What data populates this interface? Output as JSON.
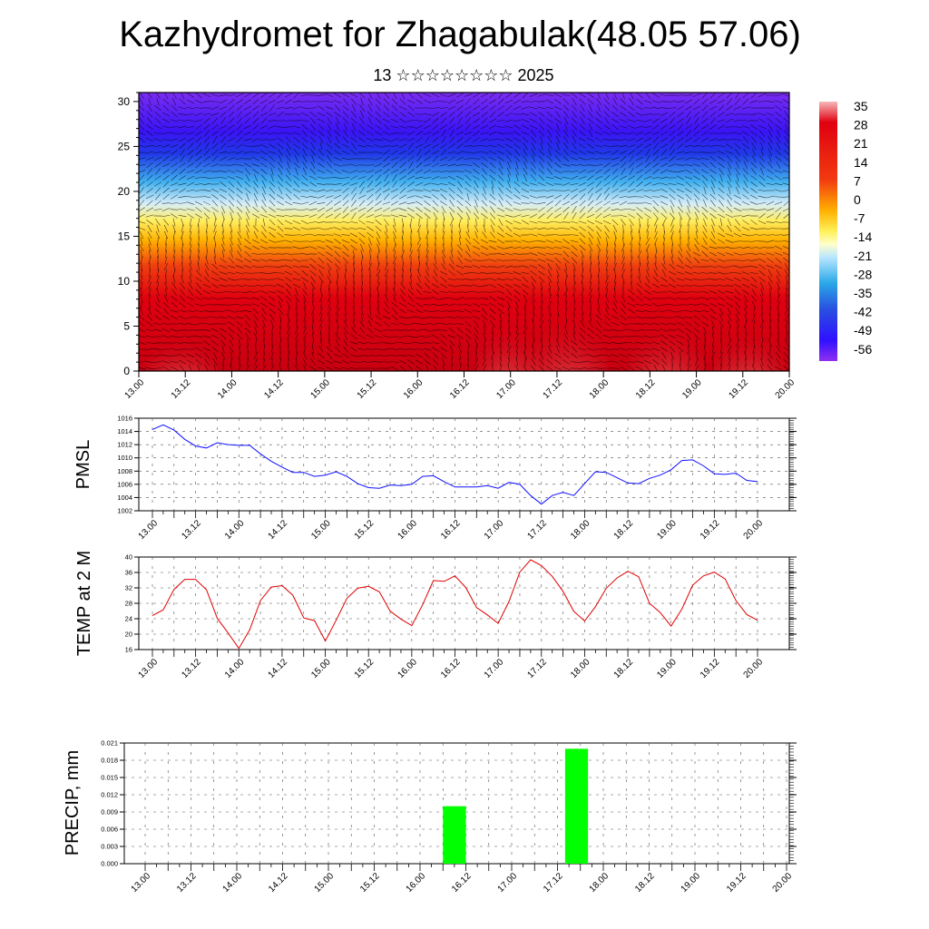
{
  "header": {
    "title": "Kazhydromet for Zhagabulak(48.05 57.06)",
    "subtitle": "13 ☆☆☆☆☆☆☆☆ 2025"
  },
  "time_labels": [
    "13.00",
    "13.12",
    "14.00",
    "14.12",
    "15.00",
    "15.12",
    "16.00",
    "16.12",
    "17.00",
    "17.12",
    "18.00",
    "18.12",
    "19.00",
    "19.12",
    "20.00"
  ],
  "chart_data": [
    {
      "type": "heatmap",
      "title": "",
      "xlabel": "",
      "ylabel": "",
      "yticks": [
        0,
        5,
        10,
        15,
        20,
        25,
        30
      ],
      "ylim": [
        0,
        31
      ],
      "colorbar": {
        "labels": [
          "35",
          "28",
          "21",
          "14",
          "7",
          "0",
          "-7",
          "-14",
          "-21",
          "-28",
          "-35",
          "-42",
          "-49",
          "-56"
        ],
        "range": [
          -60,
          38
        ]
      },
      "wind_vectors": true
    },
    {
      "type": "line",
      "ylabel": "PMSL",
      "color": "#1010ff",
      "ylim": [
        1002,
        1016
      ],
      "yticks": [
        "1016",
        "1014",
        "1012",
        "1010",
        "1008",
        "1006",
        "1004",
        "1002"
      ],
      "values": [
        1014.3,
        1015.0,
        1014.2,
        1012.8,
        1011.8,
        1011.5,
        1012.3,
        1012.0,
        1011.9,
        1011.9,
        1010.6,
        1009.5,
        1008.6,
        1007.8,
        1007.8,
        1007.2,
        1007.4,
        1007.9,
        1007.2,
        1006.1,
        1005.5,
        1005.4,
        1005.9,
        1005.8,
        1006.0,
        1007.2,
        1007.3,
        1006.4,
        1005.6,
        1005.6,
        1005.6,
        1005.8,
        1005.4,
        1006.3,
        1006.0,
        1004.3,
        1003.0,
        1004.3,
        1004.8,
        1004.3,
        1006.1,
        1007.9,
        1007.8,
        1007.0,
        1006.2,
        1006.1,
        1006.9,
        1007.4,
        1008.2,
        1009.6,
        1009.7,
        1008.8,
        1007.6,
        1007.5,
        1007.7,
        1006.6,
        1006.4
      ]
    },
    {
      "type": "line",
      "ylabel": "TEMP at 2 M",
      "color": "#e00000",
      "ylim": [
        16,
        40
      ],
      "yticks": [
        "40",
        "36",
        "32",
        "28",
        "24",
        "20",
        "16"
      ],
      "values": [
        24.8,
        26.3,
        31.6,
        34.2,
        34.2,
        31.5,
        24.1,
        20.3,
        16.3,
        21.1,
        28.7,
        32.2,
        32.6,
        30.1,
        24.2,
        23.5,
        18.2,
        23.6,
        29.3,
        31.9,
        32.4,
        31.0,
        26.0,
        23.9,
        22.2,
        27.6,
        33.9,
        33.7,
        35.1,
        32.1,
        26.9,
        25.0,
        22.8,
        28.5,
        36.1,
        39.3,
        37.8,
        35.0,
        31.1,
        25.9,
        23.4,
        27.1,
        31.9,
        34.6,
        36.3,
        34.9,
        28.0,
        25.6,
        22.1,
        26.5,
        32.7,
        35.1,
        36.1,
        34.3,
        28.7,
        25.1,
        23.6
      ]
    },
    {
      "type": "bar",
      "ylabel": "PRECIP, mm",
      "color": "#00ff00",
      "ylim": [
        0,
        0.021
      ],
      "yticks": [
        "0.021",
        "0.018",
        "0.015",
        "0.012",
        "0.009",
        "0.006",
        "0.003",
        "0.000"
      ],
      "bars": [
        {
          "start": 16.25,
          "end": 16.5,
          "value": 0.01
        },
        {
          "start": 17.583,
          "end": 17.833,
          "value": 0.02
        }
      ]
    }
  ]
}
